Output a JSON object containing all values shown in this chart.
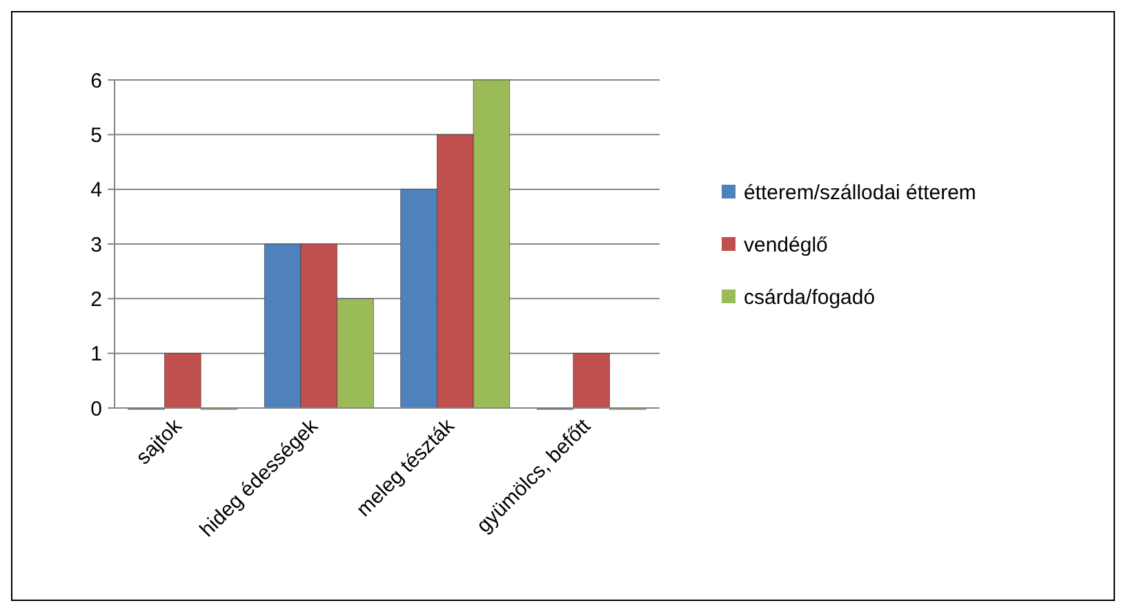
{
  "chart_data": {
    "type": "bar",
    "categories": [
      "sajtok",
      "hideg édességek",
      "meleg tészták",
      "gyümölcs, befőtt"
    ],
    "series": [
      {
        "name": "étterem/szállodai étterem",
        "color": "#4f81bd",
        "values": [
          0,
          3,
          4,
          0
        ]
      },
      {
        "name": "vendéglő",
        "color": "#c0504d",
        "values": [
          1,
          3,
          5,
          1
        ]
      },
      {
        "name": "csárda/fogadó",
        "color": "#9bbb59",
        "values": [
          0,
          2,
          6,
          0
        ]
      }
    ],
    "ylim": [
      0,
      6
    ],
    "yticks": [
      0,
      1,
      2,
      3,
      4,
      5,
      6
    ],
    "grid": "y",
    "legend": "right"
  }
}
